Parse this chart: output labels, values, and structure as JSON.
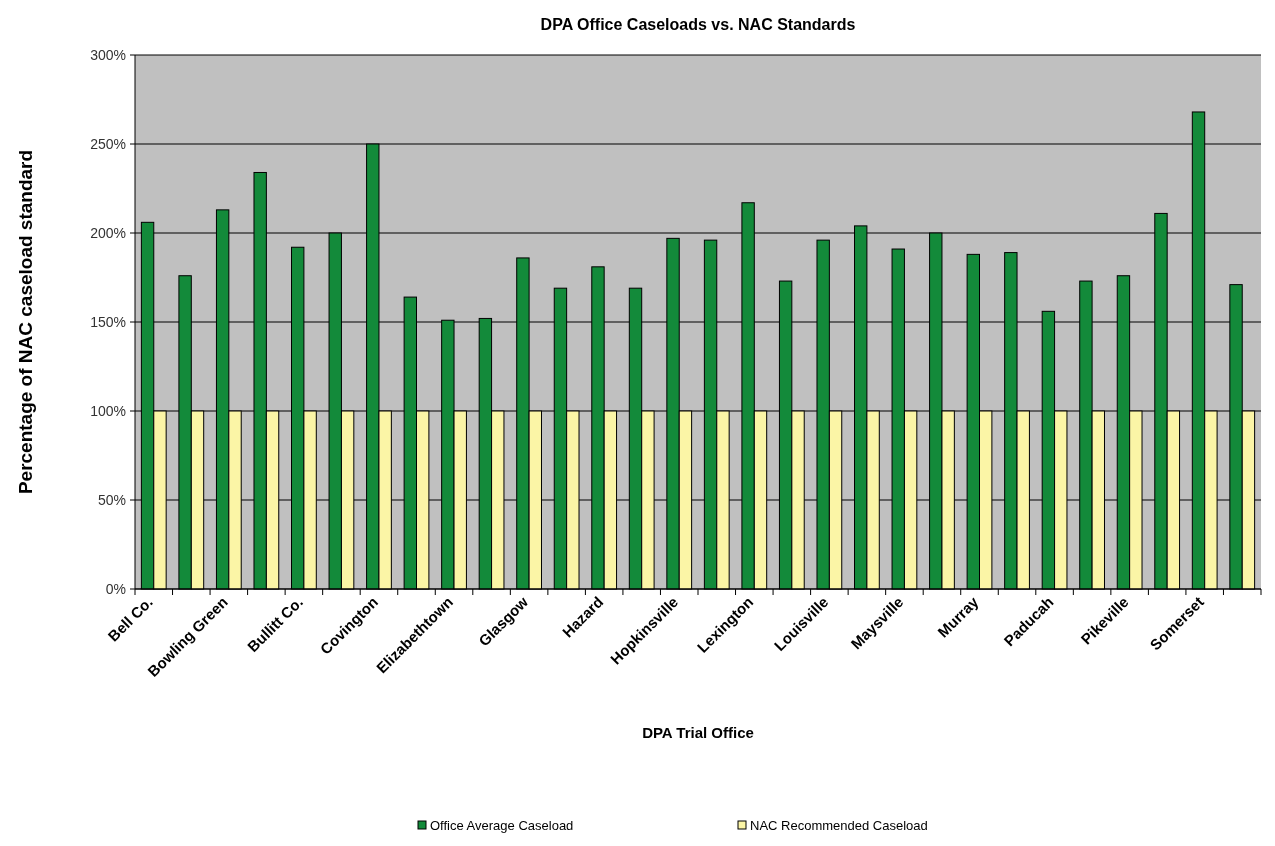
{
  "chart_data": {
    "type": "bar",
    "title": "DPA Office  Caseloads vs. NAC Standards",
    "xlabel": "DPA Trial Office",
    "ylabel": "Percentage of NAC caseload standard",
    "categories": [
      "Bell Co.",
      null,
      "Bowling Green",
      null,
      "Bullitt Co.",
      null,
      "Covington",
      null,
      "Elizabethtown",
      null,
      "Glasgow",
      null,
      "Hazard",
      null,
      "Hopkinsville",
      null,
      "Lexington",
      null,
      "Louisville",
      null,
      "Maysville",
      null,
      "Murray",
      null,
      "Paducah",
      null,
      "Pikeville",
      null,
      "Somerset",
      null
    ],
    "series": [
      {
        "name": "Office Average Caseload",
        "color": "#138a3a",
        "values": [
          206,
          176,
          213,
          234,
          192,
          200,
          250,
          164,
          151,
          152,
          186,
          169,
          181,
          169,
          197,
          196,
          217,
          173,
          196,
          204,
          191,
          200,
          188,
          189,
          156,
          173,
          176,
          211,
          268,
          171
        ]
      },
      {
        "name": "NAC Recommended Caseload",
        "color": "#fbf5a6",
        "values": [
          100,
          100,
          100,
          100,
          100,
          100,
          100,
          100,
          100,
          100,
          100,
          100,
          100,
          100,
          100,
          100,
          100,
          100,
          100,
          100,
          100,
          100,
          100,
          100,
          100,
          100,
          100,
          100,
          100,
          100
        ]
      }
    ],
    "ylim": [
      0,
      300
    ],
    "yticks": [
      {
        "value": 0,
        "label": "0%"
      },
      {
        "value": 50,
        "label": "50%"
      },
      {
        "value": 100,
        "label": "100%"
      },
      {
        "value": 150,
        "label": "150%"
      },
      {
        "value": 200,
        "label": "200%"
      },
      {
        "value": 250,
        "label": "250%"
      },
      {
        "value": 300,
        "label": "300%"
      }
    ],
    "grid": "y",
    "legend": "bottom"
  }
}
